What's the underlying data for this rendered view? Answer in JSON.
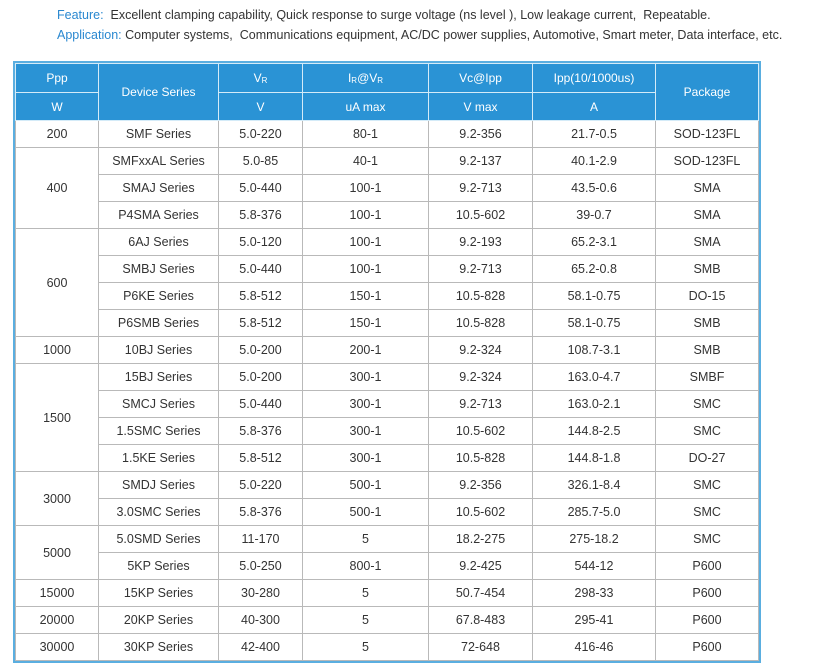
{
  "header": {
    "feature_label": "Feature:",
    "feature_text": "Excellent clamping capability, Quick response to surge voltage (ns level ), Low leakage current,  Repeatable.",
    "application_label": "Application:",
    "application_text": "Computer systems,  Communications equipment, AC/DC power supplies, Automotive, Smart meter, Data interface, etc."
  },
  "table": {
    "columns": [
      {
        "top": [
          {
            "text": "Ppp"
          }
        ],
        "bottom": "W"
      },
      {
        "top": [
          {
            "text": "Device Series"
          }
        ]
      },
      {
        "top": [
          {
            "text": "V"
          },
          {
            "text": "R",
            "sub": true
          }
        ],
        "bottom": "V"
      },
      {
        "top": [
          {
            "text": "I"
          },
          {
            "text": "R",
            "sub": true
          },
          {
            "text": "@V"
          },
          {
            "text": "R",
            "sub": true
          }
        ],
        "bottom": "uA max"
      },
      {
        "top": [
          {
            "text": "Vc@Ipp"
          }
        ],
        "bottom": "V max"
      },
      {
        "top": [
          {
            "text": "Ipp(10/1000us)"
          }
        ],
        "bottom": "A"
      },
      {
        "top": [
          {
            "text": "Package"
          }
        ]
      }
    ],
    "groups": [
      {
        "ppp": "200",
        "rows": [
          [
            "SMF Series",
            "5.0-220",
            "80-1",
            "9.2-356",
            "21.7-0.5",
            "SOD-123FL"
          ]
        ]
      },
      {
        "ppp": "400",
        "rows": [
          [
            "SMFxxAL Series",
            "5.0-85",
            "40-1",
            "9.2-137",
            "40.1-2.9",
            "SOD-123FL"
          ],
          [
            "SMAJ Series",
            "5.0-440",
            "100-1",
            "9.2-713",
            "43.5-0.6",
            "SMA"
          ],
          [
            "P4SMA Series",
            "5.8-376",
            "100-1",
            "10.5-602",
            "39-0.7",
            "SMA"
          ]
        ]
      },
      {
        "ppp": "600",
        "rows": [
          [
            "6AJ Series",
            "5.0-120",
            "100-1",
            "9.2-193",
            "65.2-3.1",
            "SMA"
          ],
          [
            "SMBJ Series",
            "5.0-440",
            "100-1",
            "9.2-713",
            "65.2-0.8",
            "SMB"
          ],
          [
            "P6KE Series",
            "5.8-512",
            "150-1",
            "10.5-828",
            "58.1-0.75",
            "DO-15"
          ],
          [
            "P6SMB Series",
            "5.8-512",
            "150-1",
            "10.5-828",
            "58.1-0.75",
            "SMB"
          ]
        ]
      },
      {
        "ppp": "1000",
        "rows": [
          [
            "10BJ Series",
            "5.0-200",
            "200-1",
            "9.2-324",
            "108.7-3.1",
            "SMB"
          ]
        ]
      },
      {
        "ppp": "1500",
        "rows": [
          [
            "15BJ Series",
            "5.0-200",
            "300-1",
            "9.2-324",
            "163.0-4.7",
            "SMBF"
          ],
          [
            "SMCJ Series",
            "5.0-440",
            "300-1",
            "9.2-713",
            "163.0-2.1",
            "SMC"
          ],
          [
            "1.5SMC Series",
            "5.8-376",
            "300-1",
            "10.5-602",
            "144.8-2.5",
            "SMC"
          ],
          [
            "1.5KE Series",
            "5.8-512",
            "300-1",
            "10.5-828",
            "144.8-1.8",
            "DO-27"
          ]
        ]
      },
      {
        "ppp": "3000",
        "rows": [
          [
            "SMDJ Series",
            "5.0-220",
            "500-1",
            "9.2-356",
            "326.1-8.4",
            "SMC"
          ],
          [
            "3.0SMC Series",
            "5.8-376",
            "500-1",
            "10.5-602",
            "285.7-5.0",
            "SMC"
          ]
        ]
      },
      {
        "ppp": "5000",
        "rows": [
          [
            "5.0SMD Series",
            "11-170",
            "5",
            "18.2-275",
            "275-18.2",
            "SMC"
          ],
          [
            "5KP Series",
            "5.0-250",
            "800-1",
            "9.2-425",
            "544-12",
            "P600"
          ]
        ]
      },
      {
        "ppp": "15000",
        "rows": [
          [
            "15KP Series",
            "30-280",
            "5",
            "50.7-454",
            "298-33",
            "P600"
          ]
        ]
      },
      {
        "ppp": "20000",
        "rows": [
          [
            "20KP Series",
            "40-300",
            "5",
            "67.8-483",
            "295-41",
            "P600"
          ]
        ]
      },
      {
        "ppp": "30000",
        "rows": [
          [
            "30KP Series",
            "42-400",
            "5",
            "72-648",
            "416-46",
            "P600"
          ]
        ]
      }
    ]
  }
}
